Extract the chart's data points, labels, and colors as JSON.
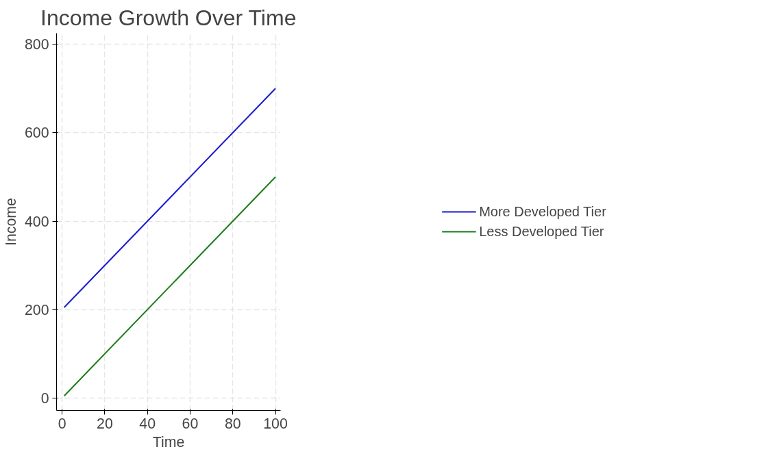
{
  "chart_data": {
    "type": "line",
    "title": "Income Growth Over Time",
    "xlabel": "Time",
    "ylabel": "Income",
    "x": [
      1,
      100
    ],
    "series": [
      {
        "name": "More Developed Tier",
        "color": "#1a1ad0",
        "values": [
          205,
          700
        ]
      },
      {
        "name": "Less Developed Tier",
        "color": "#1a7d1a",
        "values": [
          5,
          500
        ]
      }
    ],
    "xlim": [
      -2.6,
      102.4
    ],
    "xticks": [
      0,
      20,
      40,
      60,
      80,
      100
    ],
    "ylim": [
      -28,
      825
    ],
    "yticks": [
      0,
      200,
      400,
      600,
      800
    ],
    "grid": true,
    "legend": "right",
    "marker": "none",
    "line_style": "solid"
  }
}
